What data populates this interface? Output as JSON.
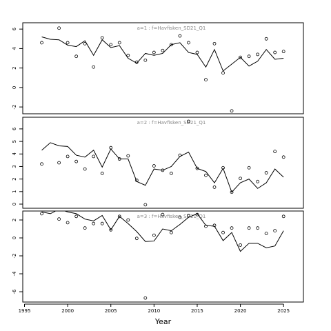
{
  "chart_data": [
    {
      "type": "line",
      "title": "a=1  :  f=Havfisken_SD21_Q1",
      "x": [
        1997,
        1998,
        1999,
        2000,
        2001,
        2002,
        2003,
        2004,
        2005,
        2006,
        2007,
        2008,
        2009,
        2010,
        2011,
        2012,
        2013,
        2014,
        2015,
        2016,
        2017,
        2018,
        2019,
        2020,
        2021,
        2022,
        2023,
        2024,
        2025
      ],
      "series": [
        {
          "type": "line",
          "color": "#000000",
          "values": [
            5.2,
            4.95,
            4.9,
            4.35,
            4.2,
            4.8,
            3.3,
            4.9,
            4.1,
            4.3,
            3.0,
            2.5,
            3.5,
            3.3,
            3.5,
            4.4,
            4.6,
            3.6,
            3.4,
            2.1,
            3.9,
            1.7,
            2.4,
            3.1,
            2.2,
            2.7,
            3.9,
            2.9,
            3.0
          ]
        },
        {
          "type": "scatter",
          "color": "#000000",
          "values": [
            4.6,
            null,
            6.1,
            4.6,
            3.2,
            4.5,
            2.1,
            5.1,
            4.4,
            4.6,
            3.3,
            2.6,
            2.8,
            3.6,
            3.8,
            4.4,
            5.3,
            4.6,
            3.6,
            0.8,
            4.5,
            1.5,
            -2.4,
            3.1,
            3.2,
            3.4,
            5.0,
            3.6,
            3.7
          ]
        }
      ],
      "xlim": [
        1994.8,
        2027.3
      ],
      "ylim": [
        -2.7,
        6.65
      ],
      "yticks": [
        -2,
        0,
        2,
        4,
        6
      ]
    },
    {
      "type": "line",
      "title": "a=2  :  f=Havfisken_SD21_Q1",
      "x": [
        1997,
        1998,
        1999,
        2000,
        2001,
        2002,
        2003,
        2004,
        2005,
        2006,
        2007,
        2008,
        2009,
        2010,
        2011,
        2012,
        2013,
        2014,
        2015,
        2016,
        2017,
        2018,
        2019,
        2020,
        2021,
        2022,
        2023,
        2024,
        2025
      ],
      "series": [
        {
          "type": "line",
          "color": "#000000",
          "values": [
            4.3,
            4.9,
            4.65,
            4.6,
            3.9,
            3.75,
            4.3,
            2.95,
            4.4,
            3.6,
            3.6,
            1.8,
            1.5,
            2.8,
            2.7,
            3.0,
            3.8,
            4.15,
            2.85,
            2.6,
            1.7,
            2.85,
            0.95,
            1.7,
            2.0,
            1.25,
            1.7,
            2.8,
            2.15
          ]
        },
        {
          "type": "scatter",
          "color": "#000000",
          "values": [
            3.2,
            null,
            3.3,
            3.8,
            3.4,
            2.8,
            3.8,
            2.45,
            4.5,
            3.6,
            3.85,
            1.9,
            -0.05,
            3.05,
            2.7,
            2.45,
            3.9,
            6.6,
            2.85,
            2.3,
            1.35,
            2.9,
            0.95,
            2.05,
            2.9,
            1.8,
            2.5,
            4.2,
            3.75
          ]
        }
      ],
      "xlim": [
        1994.8,
        2027.3
      ],
      "ylim": [
        -0.33,
        6.93
      ],
      "yticks": [
        0,
        1,
        2,
        3,
        4,
        5,
        6
      ]
    },
    {
      "type": "line",
      "title": "a=3  :  f=Havfisken_SD21_Q1",
      "xlabel": "Year",
      "x": [
        1997,
        1998,
        1999,
        2000,
        2001,
        2002,
        2003,
        2004,
        2005,
        2006,
        2007,
        2008,
        2009,
        2010,
        2011,
        2012,
        2013,
        2014,
        2015,
        2016,
        2017,
        2018,
        2019,
        2020,
        2021,
        2022,
        2023,
        2024,
        2025
      ],
      "series": [
        {
          "type": "line",
          "color": "#000000",
          "values": [
            2.9,
            2.7,
            3.2,
            2.9,
            2.7,
            2.1,
            1.9,
            2.5,
            0.9,
            2.4,
            1.6,
            0.7,
            -0.4,
            -0.35,
            1.0,
            0.8,
            1.5,
            2.3,
            2.7,
            1.4,
            1.3,
            -0.3,
            0.6,
            -1.5,
            -0.6,
            -0.6,
            -1.1,
            -0.9,
            0.8
          ]
        },
        {
          "type": "scatter",
          "color": "#000000",
          "values": [
            2.7,
            null,
            2.1,
            1.7,
            2.4,
            1.1,
            1.6,
            1.6,
            0.9,
            2.4,
            2.0,
            -0.05,
            -6.7,
            0.3,
            2.6,
            0.6,
            2.3,
            2.5,
            2.6,
            1.3,
            1.4,
            0.6,
            1.1,
            -0.8,
            1.1,
            1.1,
            0.5,
            0.8,
            2.4
          ]
        }
      ],
      "xlim": [
        1994.8,
        2027.3
      ],
      "ylim": [
        -7.15,
        3.0
      ],
      "yticks": [
        -6,
        -4,
        -2,
        0,
        2
      ],
      "xticks": [
        1995,
        2000,
        2005,
        2010,
        2015,
        2020,
        2025
      ]
    }
  ]
}
